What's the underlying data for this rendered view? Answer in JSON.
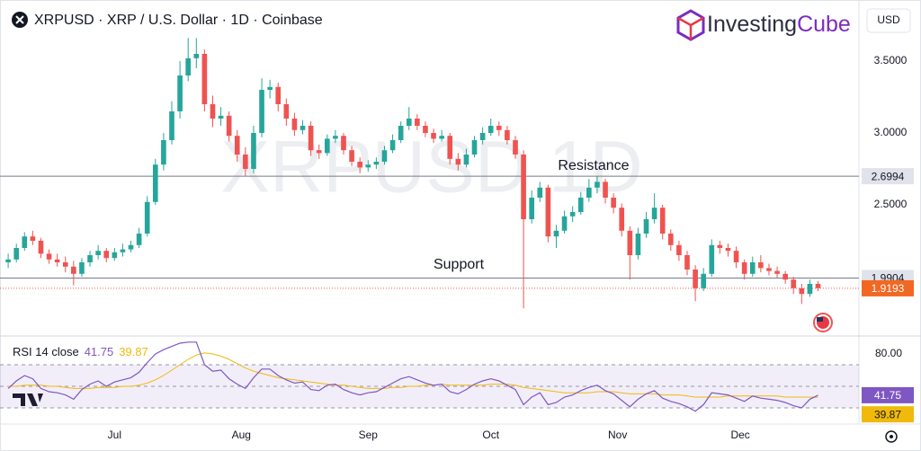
{
  "chart_data": {
    "type": "candlestick",
    "title": "XRPUSD · XRP / U.S. Dollar · 1D · Coinbase",
    "currency": "USD",
    "watermark": "XRPUSD 1D",
    "logo": [
      "Investing",
      "Cube"
    ],
    "colors": {
      "up": "#26a69a",
      "down": "#ef5350"
    },
    "ylim": [
      1.6,
      3.875
    ],
    "yticks": [
      {
        "value": 3.5,
        "label": "3.5000"
      },
      {
        "value": 3.0,
        "label": "3.0000"
      },
      {
        "value": 2.5,
        "label": "2.5000"
      }
    ],
    "xlim": [
      -1,
      104
    ],
    "xticks": [
      {
        "value": 13,
        "label": "Jul"
      },
      {
        "value": 28.5,
        "label": "Aug"
      },
      {
        "value": 44,
        "label": "Sep"
      },
      {
        "value": 59,
        "label": "Oct"
      },
      {
        "value": 74.5,
        "label": "Nov"
      },
      {
        "value": 89.5,
        "label": "Dec"
      }
    ],
    "hlines": [
      2.6994,
      1.9904
    ],
    "last_price": 1.9193,
    "annotations": [
      "Resistance",
      "Support"
    ],
    "candles": [
      [
        2.1,
        2.16,
        2.06,
        2.12
      ],
      [
        2.12,
        2.23,
        2.1,
        2.2
      ],
      [
        2.2,
        2.31,
        2.18,
        2.28
      ],
      [
        2.28,
        2.32,
        2.22,
        2.25
      ],
      [
        2.25,
        2.27,
        2.13,
        2.16
      ],
      [
        2.16,
        2.19,
        2.09,
        2.12
      ],
      [
        2.12,
        2.16,
        2.07,
        2.1
      ],
      [
        2.1,
        2.14,
        2.03,
        2.07
      ],
      [
        2.07,
        2.11,
        1.94,
        2.02
      ],
      [
        2.02,
        2.13,
        2.0,
        2.1
      ],
      [
        2.1,
        2.18,
        2.07,
        2.15
      ],
      [
        2.15,
        2.22,
        2.12,
        2.18
      ],
      [
        2.18,
        2.2,
        2.1,
        2.13
      ],
      [
        2.13,
        2.2,
        2.11,
        2.17
      ],
      [
        2.17,
        2.23,
        2.14,
        2.19
      ],
      [
        2.19,
        2.25,
        2.17,
        2.22
      ],
      [
        2.22,
        2.34,
        2.2,
        2.3
      ],
      [
        2.3,
        2.56,
        2.28,
        2.52
      ],
      [
        2.52,
        2.82,
        2.5,
        2.78
      ],
      [
        2.78,
        3.0,
        2.74,
        2.95
      ],
      [
        2.95,
        3.22,
        2.92,
        3.15
      ],
      [
        3.15,
        3.5,
        3.1,
        3.4
      ],
      [
        3.4,
        3.66,
        3.36,
        3.52
      ],
      [
        3.52,
        3.66,
        3.45,
        3.55
      ],
      [
        3.55,
        3.58,
        3.15,
        3.2
      ],
      [
        3.2,
        3.26,
        3.04,
        3.1
      ],
      [
        3.1,
        3.18,
        3.05,
        3.12
      ],
      [
        3.12,
        3.15,
        2.94,
        2.98
      ],
      [
        2.98,
        3.02,
        2.8,
        2.85
      ],
      [
        2.85,
        2.9,
        2.7,
        2.75
      ],
      [
        2.75,
        3.05,
        2.72,
        3.0
      ],
      [
        3.0,
        3.38,
        2.97,
        3.3
      ],
      [
        3.3,
        3.37,
        3.24,
        3.32
      ],
      [
        3.32,
        3.35,
        3.15,
        3.2
      ],
      [
        3.2,
        3.24,
        3.05,
        3.1
      ],
      [
        3.1,
        3.14,
        2.98,
        3.02
      ],
      [
        3.02,
        3.09,
        2.99,
        3.05
      ],
      [
        3.05,
        3.08,
        2.84,
        2.88
      ],
      [
        2.88,
        2.92,
        2.82,
        2.86
      ],
      [
        2.86,
        2.99,
        2.84,
        2.96
      ],
      [
        2.96,
        3.02,
        2.93,
        2.98
      ],
      [
        2.98,
        3.0,
        2.85,
        2.88
      ],
      [
        2.88,
        2.91,
        2.77,
        2.8
      ],
      [
        2.8,
        2.83,
        2.72,
        2.76
      ],
      [
        2.76,
        2.81,
        2.73,
        2.78
      ],
      [
        2.78,
        2.83,
        2.75,
        2.8
      ],
      [
        2.8,
        2.91,
        2.78,
        2.88
      ],
      [
        2.88,
        2.99,
        2.86,
        2.95
      ],
      [
        2.95,
        3.08,
        2.93,
        3.05
      ],
      [
        3.05,
        3.18,
        3.02,
        3.1
      ],
      [
        3.1,
        3.13,
        3.02,
        3.05
      ],
      [
        3.05,
        3.08,
        2.97,
        3.0
      ],
      [
        3.0,
        3.03,
        2.93,
        2.96
      ],
      [
        2.96,
        3.02,
        2.94,
        2.98
      ],
      [
        2.98,
        3.0,
        2.78,
        2.82
      ],
      [
        2.82,
        2.86,
        2.74,
        2.78
      ],
      [
        2.78,
        2.89,
        2.76,
        2.85
      ],
      [
        2.85,
        2.98,
        2.83,
        2.95
      ],
      [
        2.95,
        3.04,
        2.92,
        3.0
      ],
      [
        3.0,
        3.1,
        2.98,
        3.05
      ],
      [
        3.05,
        3.08,
        2.98,
        3.02
      ],
      [
        3.02,
        3.05,
        2.92,
        2.95
      ],
      [
        2.95,
        2.98,
        2.82,
        2.85
      ],
      [
        2.85,
        2.88,
        1.78,
        2.4
      ],
      [
        2.4,
        2.6,
        2.37,
        2.55
      ],
      [
        2.55,
        2.66,
        2.52,
        2.62
      ],
      [
        2.62,
        2.64,
        2.24,
        2.28
      ],
      [
        2.28,
        2.36,
        2.2,
        2.32
      ],
      [
        2.32,
        2.46,
        2.3,
        2.42
      ],
      [
        2.42,
        2.49,
        2.38,
        2.45
      ],
      [
        2.45,
        2.59,
        2.43,
        2.55
      ],
      [
        2.55,
        2.68,
        2.52,
        2.62
      ],
      [
        2.62,
        2.7,
        2.58,
        2.66
      ],
      [
        2.66,
        2.68,
        2.51,
        2.55
      ],
      [
        2.55,
        2.58,
        2.44,
        2.48
      ],
      [
        2.48,
        2.51,
        2.28,
        2.32
      ],
      [
        2.32,
        2.35,
        1.98,
        2.15
      ],
      [
        2.15,
        2.34,
        2.12,
        2.3
      ],
      [
        2.3,
        2.45,
        2.27,
        2.4
      ],
      [
        2.4,
        2.58,
        2.37,
        2.48
      ],
      [
        2.48,
        2.5,
        2.26,
        2.3
      ],
      [
        2.3,
        2.33,
        2.18,
        2.22
      ],
      [
        2.22,
        2.25,
        2.11,
        2.15
      ],
      [
        2.15,
        2.18,
        2.01,
        2.05
      ],
      [
        2.05,
        2.08,
        1.83,
        1.92
      ],
      [
        1.92,
        2.06,
        1.9,
        2.02
      ],
      [
        2.02,
        2.26,
        2.0,
        2.22
      ],
      [
        2.22,
        2.25,
        2.16,
        2.2
      ],
      [
        2.2,
        2.23,
        2.14,
        2.18
      ],
      [
        2.18,
        2.21,
        2.06,
        2.1
      ],
      [
        2.1,
        2.12,
        1.98,
        2.02
      ],
      [
        2.02,
        2.14,
        2.0,
        2.1
      ],
      [
        2.1,
        2.15,
        2.03,
        2.06
      ],
      [
        2.06,
        2.09,
        2.01,
        2.04
      ],
      [
        2.04,
        2.07,
        1.99,
        2.02
      ],
      [
        2.02,
        2.04,
        1.95,
        1.98
      ],
      [
        1.98,
        2.0,
        1.88,
        1.92
      ],
      [
        1.92,
        1.95,
        1.81,
        1.88
      ],
      [
        1.88,
        1.98,
        1.86,
        1.95
      ],
      [
        1.95,
        1.97,
        1.9,
        1.92
      ]
    ],
    "rsi": {
      "name": "RSI 14 close",
      "color": "#7e57c2",
      "ma_color": "#f0b90b",
      "last": 41.75,
      "ma_last": 39.87,
      "ylim": [
        15,
        95
      ],
      "yticks": [
        {
          "value": 80,
          "label": "80.00"
        }
      ],
      "bands": [
        70,
        50,
        30
      ],
      "values": [
        48,
        55,
        60,
        57,
        48,
        45,
        44,
        42,
        38,
        47,
        52,
        55,
        50,
        54,
        56,
        58,
        63,
        72,
        80,
        84,
        87,
        90,
        91,
        91,
        70,
        64,
        65,
        57,
        52,
        48,
        58,
        66,
        66,
        60,
        56,
        53,
        54,
        47,
        46,
        51,
        52,
        47,
        44,
        42,
        44,
        45,
        49,
        53,
        57,
        59,
        56,
        53,
        51,
        52,
        45,
        43,
        47,
        52,
        55,
        57,
        55,
        51,
        47,
        33,
        40,
        44,
        33,
        35,
        40,
        42,
        46,
        49,
        51,
        46,
        43,
        37,
        31,
        38,
        43,
        46,
        39,
        36,
        34,
        31,
        27,
        33,
        44,
        43,
        42,
        39,
        36,
        41,
        39,
        38,
        37,
        35,
        32,
        30,
        38,
        41.75
      ],
      "ma_values": [
        50,
        50,
        51,
        51,
        51,
        50,
        50,
        49,
        48,
        48,
        48,
        49,
        49,
        49,
        50,
        50,
        51,
        53,
        56,
        60,
        65,
        70,
        75,
        79,
        81,
        80,
        78,
        75,
        71,
        67,
        64,
        62,
        60,
        58,
        57,
        56,
        55,
        54,
        53,
        52,
        51,
        51,
        50,
        49,
        48,
        48,
        48,
        49,
        49,
        50,
        50,
        51,
        51,
        52,
        51,
        51,
        51,
        51,
        51,
        52,
        52,
        52,
        51,
        49,
        48,
        47,
        46,
        45,
        44,
        44,
        44,
        44,
        45,
        45,
        45,
        44,
        43,
        43,
        43,
        43,
        42,
        42,
        42,
        41,
        40,
        40,
        40,
        40,
        41,
        41,
        41,
        41,
        41,
        41,
        41,
        40,
        40,
        40,
        40,
        39.87
      ]
    }
  }
}
